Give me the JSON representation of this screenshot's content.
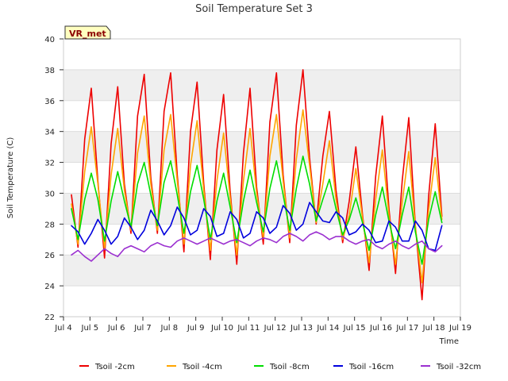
{
  "chart_data": {
    "type": "line",
    "title": "Soil Temperature Set 3",
    "xlabel": "Time",
    "ylabel": "Soil Temperature (C)",
    "badge": "VR_met",
    "ylim": [
      22,
      40
    ],
    "yticks": [
      "22",
      "24",
      "26",
      "28",
      "30",
      "32",
      "34",
      "36",
      "38",
      "40"
    ],
    "xlim_days": [
      4,
      19
    ],
    "xticks": [
      "Jul 4",
      "Jul 5",
      "Jul 6",
      "Jul 7",
      "Jul 8",
      "Jul 9",
      "Jul 10",
      "Jul 11",
      "Jul 12",
      "Jul 13",
      "Jul 14",
      "Jul 15",
      "Jul 16",
      "Jul 17",
      "Jul 18",
      "Jul 19"
    ],
    "grid": "horizontal bands",
    "legend_position": "bottom",
    "colors": {
      "background": "#ffffff",
      "band": "#efefef",
      "grid": "#dddddd",
      "badge_fill": "#ffffc0"
    },
    "x_start_day": 4.3,
    "x_step_days": 0.25,
    "series": [
      {
        "name": "Tsoil -2cm",
        "color": "#ee0000",
        "values": [
          29.9,
          26.5,
          33.5,
          36.8,
          30.8,
          25.8,
          33.2,
          36.9,
          30.6,
          27.4,
          35.0,
          37.7,
          31.0,
          27.4,
          35.3,
          37.8,
          31.2,
          26.2,
          34.0,
          37.2,
          30.6,
          25.7,
          32.8,
          36.4,
          30.1,
          25.4,
          32.6,
          36.8,
          30.4,
          26.7,
          34.6,
          37.8,
          31.2,
          26.8,
          34.4,
          38.0,
          32.3,
          28.0,
          32.4,
          35.3,
          30.2,
          26.8,
          29.5,
          33.0,
          28.6,
          25.0,
          31.1,
          35.0,
          29.0,
          24.8,
          30.8,
          34.9,
          27.9,
          23.1,
          29.8,
          34.5,
          28.5
        ]
      },
      {
        "name": "Tsoil -4cm",
        "color": "#ffa500",
        "values": [
          29.3,
          26.7,
          31.4,
          34.3,
          30.6,
          26.4,
          31.2,
          34.2,
          30.2,
          27.6,
          32.6,
          35.0,
          30.6,
          27.6,
          32.8,
          35.1,
          30.8,
          26.7,
          31.8,
          34.7,
          30.2,
          26.3,
          30.8,
          33.9,
          29.7,
          26.0,
          30.8,
          34.2,
          30.0,
          27.1,
          32.4,
          35.1,
          30.8,
          27.1,
          32.2,
          35.4,
          31.8,
          28.1,
          30.6,
          33.4,
          29.6,
          27.0,
          28.6,
          31.6,
          28.4,
          25.5,
          29.6,
          32.8,
          28.6,
          25.4,
          29.4,
          32.7,
          27.8,
          24.2,
          28.9,
          32.3,
          28.3
        ]
      },
      {
        "name": "Tsoil -8cm",
        "color": "#00dd00",
        "values": [
          29.0,
          27.0,
          29.6,
          31.3,
          29.6,
          26.9,
          29.5,
          31.4,
          29.5,
          27.8,
          30.6,
          32.0,
          29.9,
          27.9,
          30.7,
          32.1,
          29.9,
          27.4,
          30.1,
          31.8,
          29.6,
          27.0,
          29.5,
          31.3,
          29.1,
          26.8,
          29.5,
          31.5,
          29.4,
          27.5,
          30.3,
          32.1,
          29.9,
          27.6,
          30.3,
          32.4,
          30.6,
          28.2,
          29.6,
          30.9,
          29.0,
          27.3,
          28.3,
          29.7,
          28.1,
          26.3,
          28.6,
          30.4,
          28.2,
          26.4,
          28.6,
          30.4,
          27.5,
          25.4,
          28.3,
          30.1,
          28.1
        ]
      },
      {
        "name": "Tsoil -16cm",
        "color": "#0000dd",
        "values": [
          27.9,
          27.5,
          26.7,
          27.4,
          28.3,
          27.6,
          26.7,
          27.2,
          28.4,
          27.8,
          27.0,
          27.6,
          28.9,
          28.2,
          27.3,
          27.9,
          29.1,
          28.4,
          27.3,
          27.6,
          29.0,
          28.5,
          27.2,
          27.4,
          28.8,
          28.3,
          27.1,
          27.4,
          28.8,
          28.4,
          27.4,
          27.8,
          29.2,
          28.7,
          27.6,
          28.0,
          29.4,
          28.8,
          28.2,
          28.1,
          28.8,
          28.4,
          27.3,
          27.5,
          28.0,
          27.6,
          26.8,
          26.9,
          28.2,
          27.8,
          26.9,
          26.9,
          28.2,
          27.6,
          26.4,
          26.3,
          27.9
        ]
      },
      {
        "name": "Tsoil -32cm",
        "color": "#9b30d0",
        "values": [
          26.0,
          26.3,
          25.9,
          25.6,
          26.0,
          26.4,
          26.1,
          25.9,
          26.4,
          26.6,
          26.4,
          26.2,
          26.6,
          26.8,
          26.6,
          26.5,
          26.9,
          27.1,
          26.9,
          26.7,
          26.9,
          27.1,
          26.9,
          26.7,
          26.9,
          27.0,
          26.8,
          26.6,
          26.9,
          27.1,
          27.0,
          26.8,
          27.2,
          27.4,
          27.2,
          26.9,
          27.3,
          27.5,
          27.3,
          27.0,
          27.2,
          27.2,
          26.9,
          26.7,
          26.9,
          27.0,
          26.6,
          26.4,
          26.7,
          26.9,
          26.6,
          26.4,
          26.7,
          26.9,
          26.4,
          26.2,
          26.6
        ]
      }
    ]
  }
}
